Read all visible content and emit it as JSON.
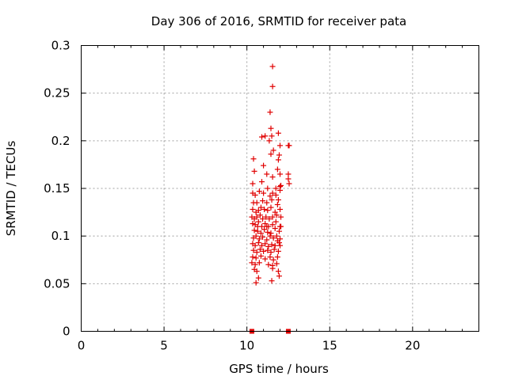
{
  "chart_data": {
    "type": "scatter",
    "title": "Day 306 of 2016, SRMTID for receiver pata",
    "xlabel": "GPS time / hours",
    "ylabel": "SRMTID / TECUs",
    "xlim": [
      0,
      24
    ],
    "ylim": [
      0,
      0.3
    ],
    "grid": true,
    "marker": "+",
    "color": "#e00000",
    "xticks": [
      {
        "value": 0,
        "label": "0"
      },
      {
        "value": 5,
        "label": "5"
      },
      {
        "value": 10,
        "label": "10"
      },
      {
        "value": 15,
        "label": "15"
      },
      {
        "value": 20,
        "label": "20"
      }
    ],
    "yticks": [
      {
        "value": 0,
        "label": "0"
      },
      {
        "value": 0.05,
        "label": "0.05"
      },
      {
        "value": 0.1,
        "label": "0.1"
      },
      {
        "value": 0.15,
        "label": "0.15"
      },
      {
        "value": 0.2,
        "label": "0.2"
      },
      {
        "value": 0.25,
        "label": "0.25"
      },
      {
        "value": 0.3,
        "label": "0.3"
      }
    ],
    "range_markers": [
      {
        "x": 10.3,
        "y": 0
      },
      {
        "x": 12.5,
        "y": 0
      }
    ],
    "series": [
      {
        "name": "SRMTID",
        "points": [
          [
            11.55,
            0.278
          ],
          [
            11.55,
            0.257
          ],
          [
            11.4,
            0.23
          ],
          [
            11.45,
            0.213
          ],
          [
            11.5,
            0.205
          ],
          [
            11.6,
            0.19
          ],
          [
            11.45,
            0.186
          ],
          [
            11.9,
            0.208
          ],
          [
            12.0,
            0.195
          ],
          [
            12.5,
            0.195
          ],
          [
            12.55,
            0.195
          ],
          [
            11.1,
            0.205
          ],
          [
            10.9,
            0.204
          ],
          [
            11.35,
            0.2
          ],
          [
            11.95,
            0.185
          ],
          [
            11.9,
            0.18
          ],
          [
            11.85,
            0.17
          ],
          [
            10.4,
            0.181
          ],
          [
            10.45,
            0.168
          ],
          [
            11.0,
            0.174
          ],
          [
            11.2,
            0.165
          ],
          [
            11.55,
            0.162
          ],
          [
            12.0,
            0.165
          ],
          [
            12.5,
            0.165
          ],
          [
            12.5,
            0.16
          ],
          [
            12.55,
            0.155
          ],
          [
            10.35,
            0.155
          ],
          [
            10.9,
            0.157
          ],
          [
            11.25,
            0.15
          ],
          [
            11.75,
            0.15
          ],
          [
            12.05,
            0.153
          ],
          [
            12.0,
            0.148
          ],
          [
            10.35,
            0.145
          ],
          [
            10.5,
            0.143
          ],
          [
            10.75,
            0.147
          ],
          [
            11.0,
            0.145
          ],
          [
            11.4,
            0.142
          ],
          [
            11.55,
            0.145
          ],
          [
            11.75,
            0.143
          ],
          [
            11.9,
            0.138
          ],
          [
            10.4,
            0.135
          ],
          [
            10.6,
            0.135
          ],
          [
            10.95,
            0.137
          ],
          [
            11.2,
            0.135
          ],
          [
            11.5,
            0.138
          ],
          [
            11.85,
            0.133
          ],
          [
            10.35,
            0.128
          ],
          [
            10.55,
            0.125
          ],
          [
            10.7,
            0.127
          ],
          [
            10.85,
            0.13
          ],
          [
            11.05,
            0.128
          ],
          [
            11.25,
            0.127
          ],
          [
            11.45,
            0.13
          ],
          [
            11.7,
            0.125
          ],
          [
            12.0,
            0.128
          ],
          [
            10.3,
            0.12
          ],
          [
            10.45,
            0.118
          ],
          [
            10.6,
            0.12
          ],
          [
            10.8,
            0.122
          ],
          [
            10.95,
            0.118
          ],
          [
            11.15,
            0.12
          ],
          [
            11.35,
            0.118
          ],
          [
            11.55,
            0.12
          ],
          [
            11.8,
            0.122
          ],
          [
            12.05,
            0.12
          ],
          [
            10.35,
            0.113
          ],
          [
            10.5,
            0.112
          ],
          [
            10.7,
            0.115
          ],
          [
            10.9,
            0.11
          ],
          [
            11.1,
            0.113
          ],
          [
            11.3,
            0.11
          ],
          [
            11.55,
            0.112
          ],
          [
            11.75,
            0.115
          ],
          [
            12.0,
            0.11
          ],
          [
            10.45,
            0.106
          ],
          [
            10.65,
            0.105
          ],
          [
            10.85,
            0.103
          ],
          [
            11.05,
            0.107
          ],
          [
            11.25,
            0.104
          ],
          [
            11.45,
            0.103
          ],
          [
            11.7,
            0.108
          ],
          [
            11.95,
            0.105
          ],
          [
            10.4,
            0.098
          ],
          [
            10.55,
            0.1
          ],
          [
            10.75,
            0.097
          ],
          [
            10.95,
            0.099
          ],
          [
            11.2,
            0.096
          ],
          [
            11.4,
            0.1
          ],
          [
            11.6,
            0.098
          ],
          [
            11.8,
            0.1
          ],
          [
            12.0,
            0.097
          ],
          [
            10.35,
            0.092
          ],
          [
            10.5,
            0.09
          ],
          [
            10.7,
            0.093
          ],
          [
            10.9,
            0.09
          ],
          [
            11.1,
            0.092
          ],
          [
            11.3,
            0.089
          ],
          [
            11.5,
            0.091
          ],
          [
            11.7,
            0.09
          ],
          [
            11.95,
            0.093
          ],
          [
            10.4,
            0.085
          ],
          [
            10.6,
            0.083
          ],
          [
            10.8,
            0.086
          ],
          [
            11.0,
            0.084
          ],
          [
            11.25,
            0.085
          ],
          [
            11.45,
            0.083
          ],
          [
            11.65,
            0.086
          ],
          [
            11.9,
            0.084
          ],
          [
            10.35,
            0.078
          ],
          [
            10.55,
            0.077
          ],
          [
            10.85,
            0.079
          ],
          [
            11.1,
            0.076
          ],
          [
            11.4,
            0.078
          ],
          [
            11.6,
            0.075
          ],
          [
            11.85,
            0.078
          ],
          [
            10.3,
            0.072
          ],
          [
            10.5,
            0.07
          ],
          [
            10.75,
            0.072
          ],
          [
            11.3,
            0.07
          ],
          [
            11.55,
            0.069
          ],
          [
            11.8,
            0.071
          ],
          [
            10.45,
            0.065
          ],
          [
            10.6,
            0.063
          ],
          [
            11.55,
            0.066
          ],
          [
            11.9,
            0.063
          ],
          [
            11.95,
            0.058
          ],
          [
            10.7,
            0.056
          ],
          [
            10.55,
            0.051
          ],
          [
            11.5,
            0.053
          ],
          [
            12.0,
            0.152
          ],
          [
            12.05,
            0.11
          ],
          [
            12.0,
            0.09
          ],
          [
            11.85,
            0.095
          ],
          [
            10.65,
            0.11
          ],
          [
            11.2,
            0.11
          ]
        ]
      }
    ]
  }
}
